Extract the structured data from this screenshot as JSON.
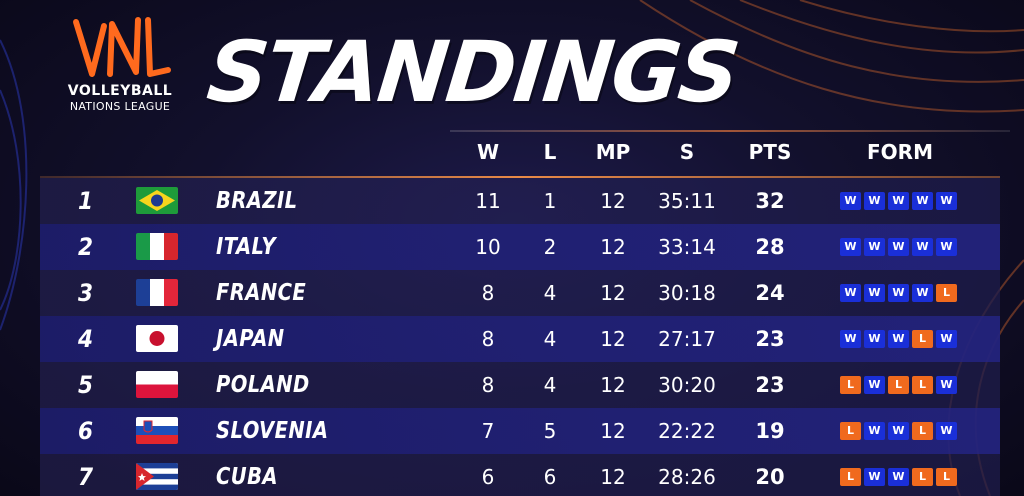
{
  "logo": {
    "mark": "VNL",
    "line1": "VOLLEYBALL",
    "line2": "NATIONS LEAGUE"
  },
  "title": "STANDINGS",
  "columns": {
    "w": "W",
    "l": "L",
    "mp": "MP",
    "s": "S",
    "pts": "PTS",
    "form": "FORM"
  },
  "colors": {
    "win": "#1a2fd8",
    "loss": "#f06a1e",
    "accent": "#ff7a2e"
  },
  "rows": [
    {
      "rank": "1",
      "country": "BRAZIL",
      "flag": "brazil-flag-icon",
      "w": "11",
      "l": "1",
      "mp": "12",
      "s": "35:11",
      "pts": "32",
      "form": [
        "W",
        "W",
        "W",
        "W",
        "W"
      ]
    },
    {
      "rank": "2",
      "country": "ITALY",
      "flag": "italy-flag-icon",
      "w": "10",
      "l": "2",
      "mp": "12",
      "s": "33:14",
      "pts": "28",
      "form": [
        "W",
        "W",
        "W",
        "W",
        "W"
      ]
    },
    {
      "rank": "3",
      "country": "FRANCE",
      "flag": "france-flag-icon",
      "w": "8",
      "l": "4",
      "mp": "12",
      "s": "30:18",
      "pts": "24",
      "form": [
        "W",
        "W",
        "W",
        "W",
        "L"
      ]
    },
    {
      "rank": "4",
      "country": "JAPAN",
      "flag": "japan-flag-icon",
      "w": "8",
      "l": "4",
      "mp": "12",
      "s": "27:17",
      "pts": "23",
      "form": [
        "W",
        "W",
        "W",
        "L",
        "W"
      ]
    },
    {
      "rank": "5",
      "country": "POLAND",
      "flag": "poland-flag-icon",
      "w": "8",
      "l": "4",
      "mp": "12",
      "s": "30:20",
      "pts": "23",
      "form": [
        "L",
        "W",
        "L",
        "L",
        "W"
      ]
    },
    {
      "rank": "6",
      "country": "SLOVENIA",
      "flag": "slovenia-flag-icon",
      "w": "7",
      "l": "5",
      "mp": "12",
      "s": "22:22",
      "pts": "19",
      "form": [
        "L",
        "W",
        "W",
        "L",
        "W"
      ]
    },
    {
      "rank": "7",
      "country": "CUBA",
      "flag": "cuba-flag-icon",
      "w": "6",
      "l": "6",
      "mp": "12",
      "s": "28:26",
      "pts": "20",
      "form": [
        "L",
        "W",
        "W",
        "L",
        "L"
      ]
    }
  ]
}
